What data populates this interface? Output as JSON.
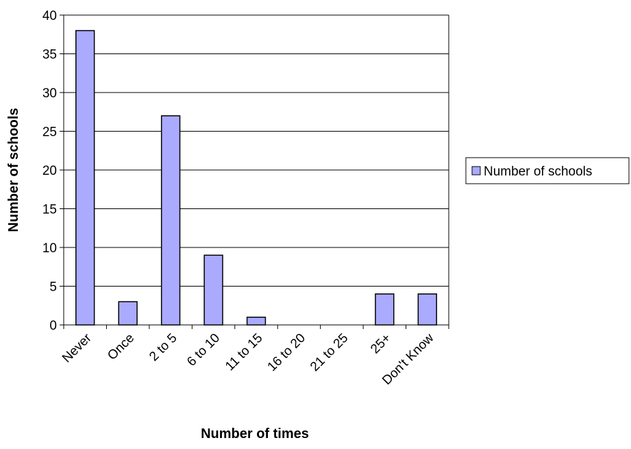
{
  "chart_data": {
    "type": "bar",
    "categories": [
      "Never",
      "Once",
      "2 to 5",
      "6 to 10",
      "11 to 15",
      "16 to 20",
      "21 to 25",
      "25+",
      "Don't Know"
    ],
    "series": [
      {
        "name": "Number of schools",
        "values": [
          38,
          3,
          27,
          9,
          1,
          0,
          0,
          4,
          4
        ]
      }
    ],
    "xlabel": "Number of times",
    "ylabel": "Number of schools",
    "ylim": [
      0,
      40
    ],
    "yticks": [
      "0",
      "5",
      "10",
      "15",
      "20",
      "25",
      "30",
      "35",
      "40"
    ],
    "grid": true,
    "legend_position": "right",
    "colors": {
      "bar_fill": "#aaaaff",
      "bar_stroke": "#000000",
      "grid": "#000000"
    }
  }
}
